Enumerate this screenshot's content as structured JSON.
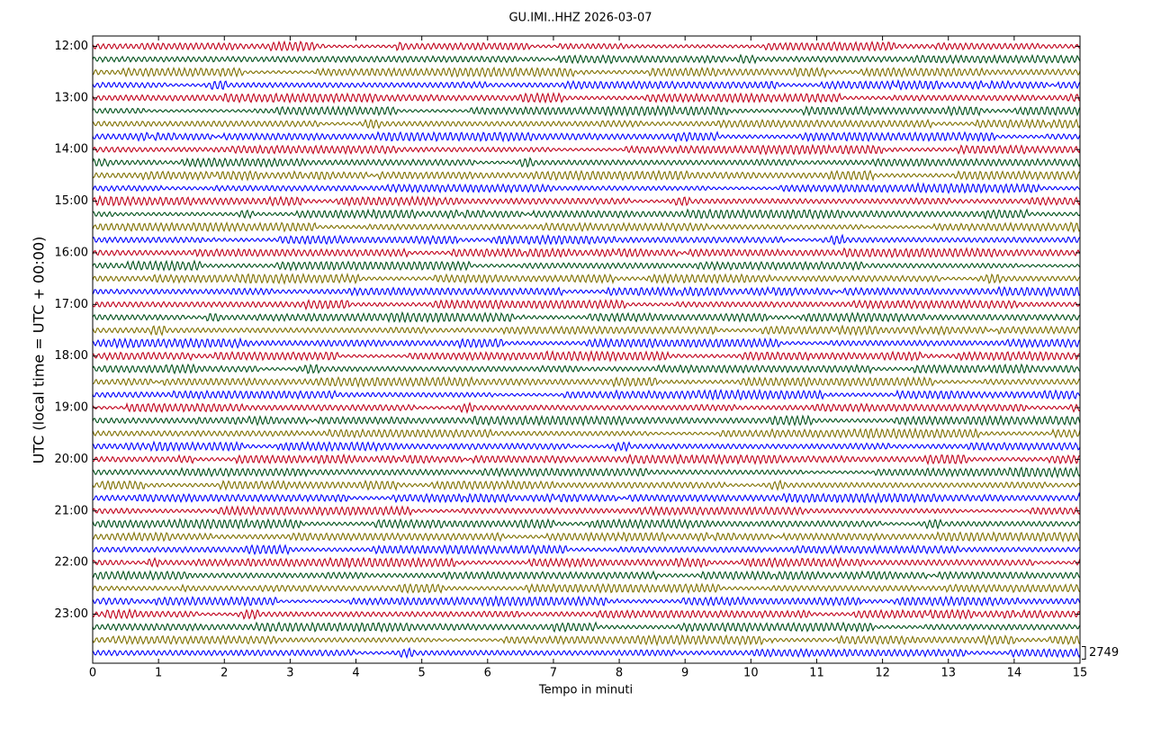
{
  "chart_data": {
    "type": "dayplot",
    "title": "GU.IMI..HHZ 2026-03-07",
    "x_label": "Tempo in minuti",
    "y_label": "UTC (local time = UTC + 00:00)",
    "xlim": [
      0,
      15
    ],
    "xticks": [
      0,
      1,
      2,
      3,
      4,
      5,
      6,
      7,
      8,
      9,
      10,
      11,
      12,
      13,
      14,
      15
    ],
    "ylim": [
      -0.2,
      11.95
    ],
    "yticks": [
      {
        "value": 0,
        "label": "12:00"
      },
      {
        "value": 1,
        "label": "13:00"
      },
      {
        "value": 2,
        "label": "14:00"
      },
      {
        "value": 3,
        "label": "15:00"
      },
      {
        "value": 4,
        "label": "16:00"
      },
      {
        "value": 5,
        "label": "17:00"
      },
      {
        "value": 6,
        "label": "18:00"
      },
      {
        "value": 7,
        "label": "19:00"
      },
      {
        "value": 8,
        "label": "20:00"
      },
      {
        "value": 9,
        "label": "21:00"
      },
      {
        "value": 10,
        "label": "22:00"
      },
      {
        "value": 11,
        "label": "23:00"
      }
    ],
    "rows_per_hour": 4,
    "trace_colors": [
      "#c0001a",
      "#00501a",
      "#7f7000",
      "#0000ff"
    ],
    "scale": 2749
  }
}
